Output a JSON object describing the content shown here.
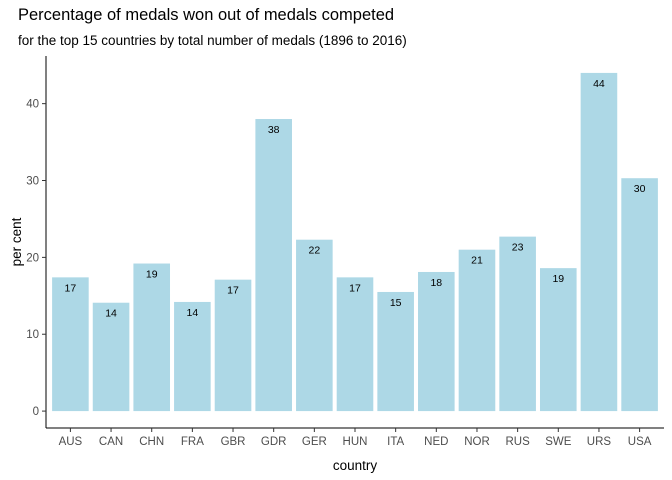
{
  "title": "Percentage of medals won out of medals competed",
  "subtitle": "for the top 15 countries by total number of medals (1896 to 2016)",
  "chart_data": {
    "type": "bar",
    "title": "Percentage of medals won out of medals competed",
    "subtitle": "for the top 15 countries by total number of medals (1896 to 2016)",
    "xlabel": "country",
    "ylabel": "per cent",
    "categories": [
      "AUS",
      "CAN",
      "CHN",
      "FRA",
      "GBR",
      "GDR",
      "GER",
      "HUN",
      "ITA",
      "NED",
      "NOR",
      "RUS",
      "SWE",
      "URS",
      "USA"
    ],
    "values": [
      17.4,
      14.1,
      19.2,
      14.2,
      17.1,
      38.0,
      22.3,
      17.4,
      15.5,
      18.1,
      21.0,
      22.7,
      18.6,
      44.0,
      30.3
    ],
    "data_labels": [
      "17",
      "14",
      "19",
      "14",
      "17",
      "38",
      "22",
      "17",
      "15",
      "18",
      "21",
      "23",
      "19",
      "44",
      "30"
    ],
    "yticks": [
      0,
      10,
      20,
      30,
      40
    ],
    "ylim": [
      -2.2,
      46.2
    ],
    "bar_color": "#add8e6",
    "grid": false,
    "legend": "none"
  }
}
